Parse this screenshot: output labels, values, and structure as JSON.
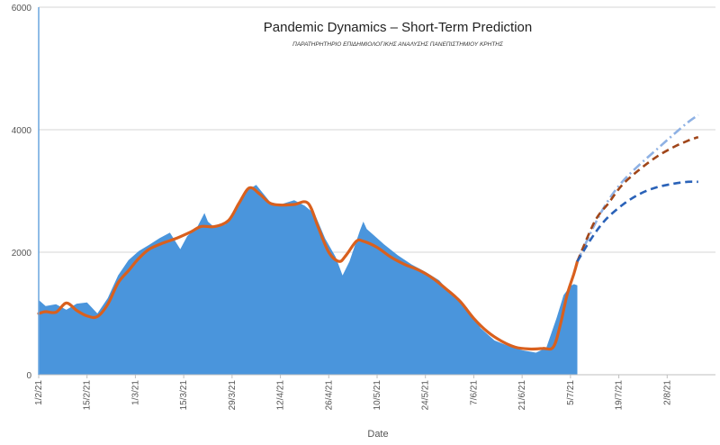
{
  "chart_data": {
    "type": "area",
    "title": "Pandemic Dynamics – Short-Term Prediction",
    "subtitle": "ΠΑΡΑΤΗΡΗΤΗΡΙΟ ΕΠΙΔΗΜΙΟΛΟΓΙΚΗΣ ΑΝΑΛΥΣΗΣ ΠΑΝΕΠΙΣΤΗΜΙΟΥ ΚΡΗΤΗΣ",
    "xlabel": "Date",
    "ylabel": "",
    "ylim": [
      0,
      6000
    ],
    "yticks": [
      0,
      2000,
      4000,
      6000
    ],
    "xlim": [
      "2021-02-01",
      "2021-08-16"
    ],
    "xticks": [
      {
        "date": "2021-02-01",
        "label": "1/2/21"
      },
      {
        "date": "2021-02-15",
        "label": "15/2/21"
      },
      {
        "date": "2021-03-01",
        "label": "1/3/21"
      },
      {
        "date": "2021-03-15",
        "label": "15/3/21"
      },
      {
        "date": "2021-03-29",
        "label": "29/3/21"
      },
      {
        "date": "2021-04-12",
        "label": "12/4/21"
      },
      {
        "date": "2021-04-26",
        "label": "26/4/21"
      },
      {
        "date": "2021-05-10",
        "label": "10/5/21"
      },
      {
        "date": "2021-05-24",
        "label": "24/5/21"
      },
      {
        "date": "2021-06-07",
        "label": "7/6/21"
      },
      {
        "date": "2021-06-21",
        "label": "21/6/21"
      },
      {
        "date": "2021-07-05",
        "label": "5/7/21"
      },
      {
        "date": "2021-07-19",
        "label": "19/7/21"
      },
      {
        "date": "2021-08-02",
        "label": "2/8/21"
      }
    ],
    "grid": {
      "horizontal": true,
      "vertical": false
    },
    "colors": {
      "area": "#4a95dc",
      "trend": "#d9601e",
      "forecast_high": "#8eb1e4",
      "forecast_mid": "#a0461a",
      "forecast_low": "#2a62b8",
      "grid": "#d6d6d6"
    },
    "series": [
      {
        "kind": "area",
        "x": [
          "2021-02-01",
          "2021-02-03",
          "2021-02-06",
          "2021-02-09",
          "2021-02-12",
          "2021-02-15",
          "2021-02-18",
          "2021-02-21",
          "2021-02-24",
          "2021-02-27",
          "2021-03-02",
          "2021-03-05",
          "2021-03-08",
          "2021-03-11",
          "2021-03-14",
          "2021-03-16",
          "2021-03-19",
          "2021-03-21",
          "2021-03-22",
          "2021-03-24",
          "2021-03-27",
          "2021-03-30",
          "2021-04-02",
          "2021-04-05",
          "2021-04-09",
          "2021-04-12",
          "2021-04-16",
          "2021-04-19",
          "2021-04-22",
          "2021-04-25",
          "2021-04-28",
          "2021-04-30",
          "2021-05-02",
          "2021-05-05",
          "2021-05-06",
          "2021-05-07",
          "2021-05-09",
          "2021-05-12",
          "2021-05-16",
          "2021-05-20",
          "2021-05-24",
          "2021-05-28",
          "2021-06-01",
          "2021-06-05",
          "2021-06-09",
          "2021-06-13",
          "2021-06-17",
          "2021-06-21",
          "2021-06-25",
          "2021-06-28",
          "2021-07-01",
          "2021-07-03",
          "2021-07-05",
          "2021-07-06",
          "2021-07-07"
        ],
        "values": [
          1220,
          1120,
          1150,
          1060,
          1160,
          1180,
          1000,
          1250,
          1620,
          1870,
          2020,
          2120,
          2230,
          2320,
          2050,
          2260,
          2420,
          2640,
          2500,
          2400,
          2450,
          2700,
          3000,
          3100,
          2820,
          2780,
          2850,
          2760,
          2620,
          2220,
          1920,
          1620,
          1850,
          2350,
          2500,
          2380,
          2280,
          2130,
          1950,
          1800,
          1680,
          1540,
          1280,
          1100,
          760,
          560,
          470,
          400,
          360,
          440,
          930,
          1300,
          1450,
          1480,
          1460
        ]
      },
      {
        "kind": "line",
        "style": "solid",
        "x": [
          "2021-02-01",
          "2021-02-03",
          "2021-02-06",
          "2021-02-09",
          "2021-02-12",
          "2021-02-15",
          "2021-02-18",
          "2021-02-21",
          "2021-02-24",
          "2021-02-27",
          "2021-03-02",
          "2021-03-05",
          "2021-03-09",
          "2021-03-13",
          "2021-03-17",
          "2021-03-20",
          "2021-03-24",
          "2021-03-28",
          "2021-03-31",
          "2021-04-03",
          "2021-04-06",
          "2021-04-09",
          "2021-04-12",
          "2021-04-16",
          "2021-04-20",
          "2021-04-23",
          "2021-04-26",
          "2021-04-29",
          "2021-05-01",
          "2021-05-04",
          "2021-05-06",
          "2021-05-10",
          "2021-05-14",
          "2021-05-18",
          "2021-05-22",
          "2021-05-26",
          "2021-05-30",
          "2021-06-03",
          "2021-06-07",
          "2021-06-11",
          "2021-06-15",
          "2021-06-19",
          "2021-06-23",
          "2021-06-27",
          "2021-06-30",
          "2021-07-02",
          "2021-07-04",
          "2021-07-06",
          "2021-07-07"
        ],
        "values": [
          1000,
          1030,
          1020,
          1170,
          1050,
          960,
          950,
          1150,
          1500,
          1700,
          1900,
          2050,
          2150,
          2230,
          2330,
          2420,
          2420,
          2520,
          2800,
          3050,
          2950,
          2800,
          2770,
          2780,
          2800,
          2400,
          2000,
          1850,
          1950,
          2180,
          2180,
          2080,
          1920,
          1800,
          1710,
          1580,
          1400,
          1200,
          920,
          700,
          550,
          450,
          420,
          430,
          450,
          800,
          1300,
          1650,
          1850
        ]
      },
      {
        "kind": "forecast",
        "style": "dash-dot",
        "x": [
          "2021-07-07",
          "2021-07-12",
          "2021-07-16",
          "2021-07-20",
          "2021-07-25",
          "2021-07-30",
          "2021-08-04",
          "2021-08-08",
          "2021-08-11"
        ],
        "values": [
          1850,
          2450,
          2850,
          3150,
          3430,
          3680,
          3930,
          4120,
          4240
        ]
      },
      {
        "kind": "forecast",
        "style": "dashed",
        "x": [
          "2021-07-07",
          "2021-07-12",
          "2021-07-16",
          "2021-07-20",
          "2021-07-25",
          "2021-07-30",
          "2021-08-04",
          "2021-08-08",
          "2021-08-11"
        ],
        "values": [
          1850,
          2500,
          2800,
          3100,
          3350,
          3560,
          3720,
          3820,
          3880
        ]
      },
      {
        "kind": "forecast",
        "style": "dashed",
        "x": [
          "2021-07-07",
          "2021-07-11",
          "2021-07-15",
          "2021-07-20",
          "2021-07-25",
          "2021-07-30",
          "2021-08-04",
          "2021-08-08",
          "2021-08-11"
        ],
        "values": [
          1850,
          2220,
          2520,
          2770,
          2950,
          3060,
          3120,
          3150,
          3150
        ]
      }
    ]
  }
}
